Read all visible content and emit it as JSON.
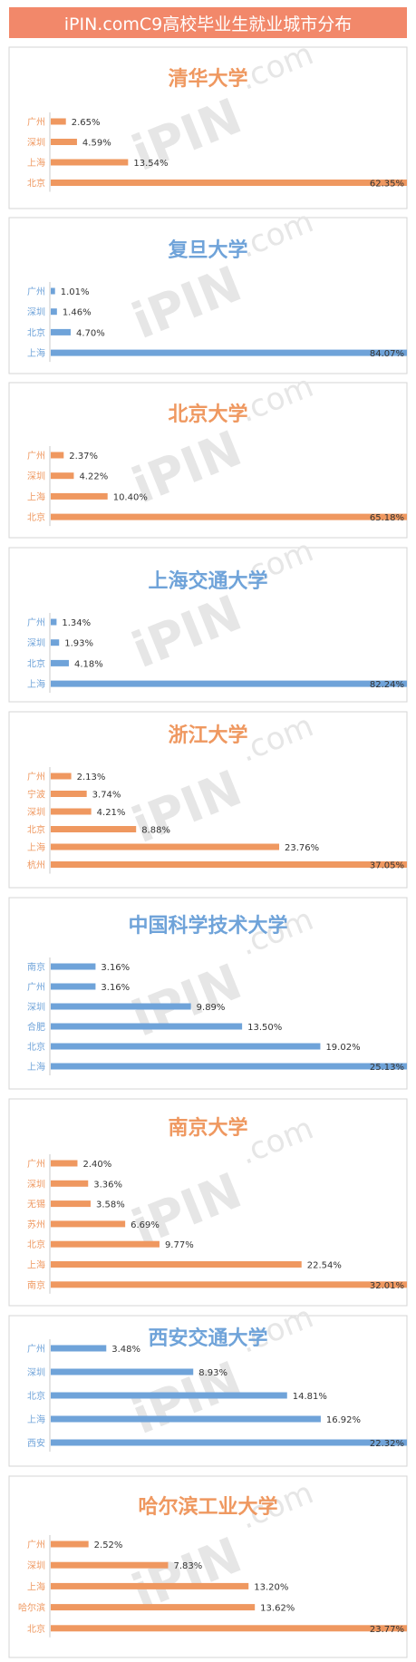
{
  "header": {
    "title": "iPIN.comC9高校毕业生就业城市分布"
  },
  "watermark": {
    "brand": "iPIN",
    "suffix": ".com"
  },
  "colors": {
    "orange": "#ef9860",
    "blue": "#6fa3d9"
  },
  "chart_data": [
    {
      "type": "bar",
      "title": "清华大学",
      "color": "orange",
      "categories": [
        "广州",
        "深圳",
        "上海",
        "北京"
      ],
      "values": [
        2.65,
        4.59,
        13.54,
        62.35
      ],
      "labels": [
        "2.65%",
        "4.59%",
        "13.54%",
        "62.35%"
      ]
    },
    {
      "type": "bar",
      "title": "复旦大学",
      "color": "blue",
      "categories": [
        "广州",
        "深圳",
        "北京",
        "上海"
      ],
      "values": [
        1.01,
        1.46,
        4.7,
        84.07
      ],
      "labels": [
        "1.01%",
        "1.46%",
        "4.70%",
        "84.07%"
      ]
    },
    {
      "type": "bar",
      "title": "北京大学",
      "color": "orange",
      "categories": [
        "广州",
        "深圳",
        "上海",
        "北京"
      ],
      "values": [
        2.37,
        4.22,
        10.4,
        65.18
      ],
      "labels": [
        "2.37%",
        "4.22%",
        "10.40%",
        "65.18%"
      ]
    },
    {
      "type": "bar",
      "title": "上海交通大学",
      "color": "blue",
      "categories": [
        "广州",
        "深圳",
        "北京",
        "上海"
      ],
      "values": [
        1.34,
        1.93,
        4.18,
        82.24
      ],
      "labels": [
        "1.34%",
        "1.93%",
        "4.18%",
        "82.24%"
      ]
    },
    {
      "type": "bar",
      "title": "浙江大学",
      "color": "orange",
      "categories": [
        "广州",
        "宁波",
        "深圳",
        "北京",
        "上海",
        "杭州"
      ],
      "values": [
        2.13,
        3.74,
        4.21,
        8.88,
        23.76,
        37.05
      ],
      "labels": [
        "2.13%",
        "3.74%",
        "4.21%",
        "8.88%",
        "23.76%",
        "37.05%"
      ]
    },
    {
      "type": "bar",
      "title": "中国科学技术大学",
      "color": "blue",
      "categories": [
        "南京",
        "广州",
        "深圳",
        "合肥",
        "北京",
        "上海"
      ],
      "values": [
        3.16,
        3.16,
        9.89,
        13.5,
        19.02,
        25.13
      ],
      "labels": [
        "3.16%",
        "3.16%",
        "9.89%",
        "13.50%",
        "19.02%",
        "25.13%"
      ]
    },
    {
      "type": "bar",
      "title": "南京大学",
      "color": "orange",
      "categories": [
        "广州",
        "深圳",
        "无锡",
        "苏州",
        "北京",
        "上海",
        "南京"
      ],
      "values": [
        2.4,
        3.36,
        3.58,
        6.69,
        9.77,
        22.54,
        32.01
      ],
      "labels": [
        "2.40%",
        "3.36%",
        "3.58%",
        "6.69%",
        "9.77%",
        "22.54%",
        "32.01%"
      ]
    },
    {
      "type": "bar",
      "title": "西安交通大学",
      "color": "blue",
      "categories": [
        "广州",
        "深圳",
        "北京",
        "上海",
        "西安"
      ],
      "values": [
        3.48,
        8.93,
        14.81,
        16.92,
        22.32
      ],
      "labels": [
        "3.48%",
        "8.93%",
        "14.81%",
        "16.92%",
        "22.32%"
      ]
    },
    {
      "type": "bar",
      "title": "哈尔滨工业大学",
      "color": "orange",
      "categories": [
        "广州",
        "深圳",
        "上海",
        "哈尔滨",
        "北京"
      ],
      "values": [
        2.52,
        7.83,
        13.2,
        13.62,
        23.77
      ],
      "labels": [
        "2.52%",
        "7.83%",
        "13.20%",
        "13.62%",
        "23.77%"
      ]
    }
  ]
}
